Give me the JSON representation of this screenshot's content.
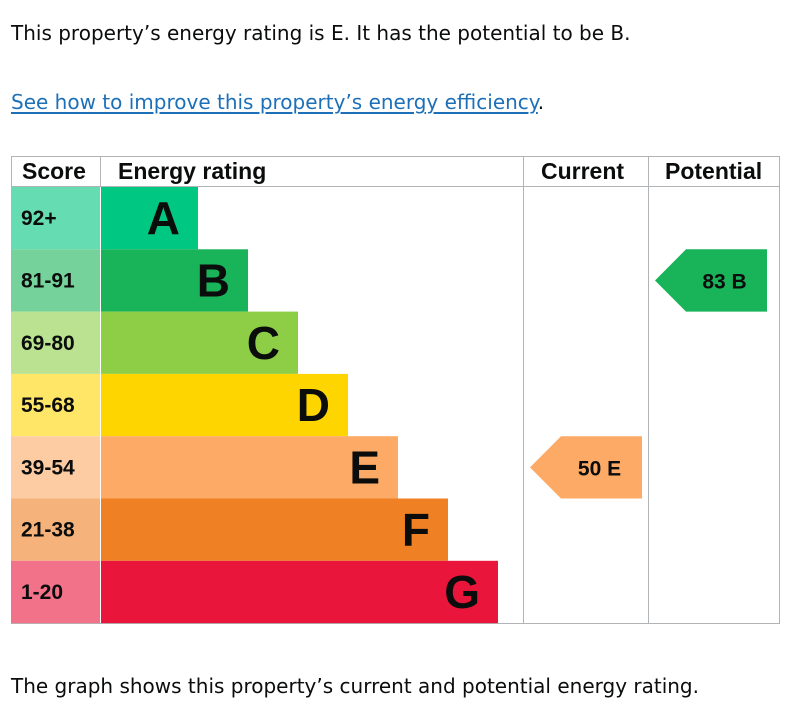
{
  "intro": {
    "text": "This property’s energy rating is E. It has the potential to be B."
  },
  "improve_link": {
    "label": "See how to improve this property’s energy efficiency",
    "suffix": "."
  },
  "footer": {
    "text": "The graph shows this property’s current and potential energy rating."
  },
  "colors": {
    "link": "#1d70b8",
    "border": "#b1b4b6"
  },
  "chart_data": {
    "type": "table",
    "headers": {
      "score": "Score",
      "rating": "Energy rating",
      "current": "Current",
      "potential": "Potential"
    },
    "bands": [
      {
        "letter": "A",
        "score": "92+",
        "min": 92,
        "color": "#00c781",
        "score_bg": "#66dcb3"
      },
      {
        "letter": "B",
        "score": "81-91",
        "min": 81,
        "max": 91,
        "color": "#19b459",
        "score_bg": "#75d29b"
      },
      {
        "letter": "C",
        "score": "69-80",
        "min": 69,
        "max": 80,
        "color": "#8dce46",
        "score_bg": "#bbe290"
      },
      {
        "letter": "D",
        "score": "55-68",
        "min": 55,
        "max": 68,
        "color": "#ffd500",
        "score_bg": "#ffe666"
      },
      {
        "letter": "E",
        "score": "39-54",
        "min": 39,
        "max": 54,
        "color": "#fcaa65",
        "score_bg": "#fdcca3"
      },
      {
        "letter": "F",
        "score": "21-38",
        "min": 21,
        "max": 38,
        "color": "#ef8023",
        "score_bg": "#f5b37b"
      },
      {
        "letter": "G",
        "score": "1-20",
        "min": 1,
        "max": 20,
        "color": "#e9153b",
        "score_bg": "#f27389"
      }
    ],
    "current": {
      "value": 50,
      "letter": "E",
      "label": "50  E"
    },
    "potential": {
      "value": 83,
      "letter": "B",
      "label": "83  B"
    }
  }
}
